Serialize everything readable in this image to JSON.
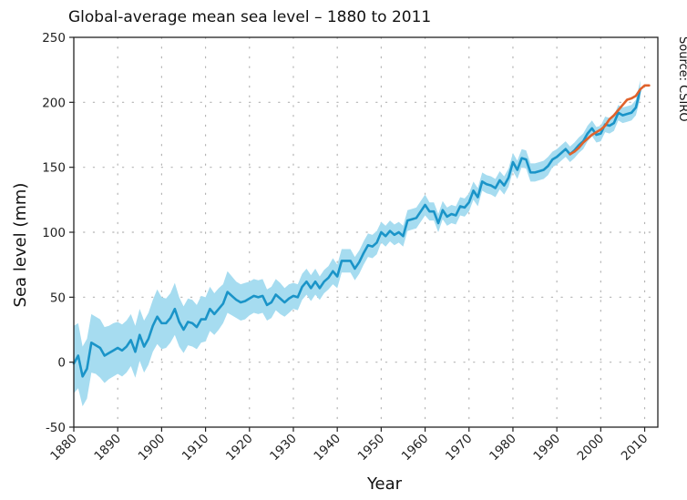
{
  "chart_data": {
    "type": "line",
    "title": "Global-average mean sea level – 1880 to 2011",
    "xlabel": "Year",
    "ylabel": "Sea level (mm)",
    "source": "Source: CSIRO",
    "xlim": [
      1880,
      2013
    ],
    "ylim": [
      -50,
      250
    ],
    "x_ticks": [
      1880,
      1890,
      1900,
      1910,
      1920,
      1930,
      1940,
      1950,
      1960,
      1970,
      1980,
      1990,
      2000,
      2010
    ],
    "y_ticks": [
      -50,
      0,
      50,
      100,
      150,
      200,
      250
    ],
    "grid": true,
    "series": [
      {
        "color": "#1a94c8",
        "band_color": "#a6dcf0",
        "x": [
          1880,
          1881,
          1882,
          1883,
          1884,
          1885,
          1886,
          1887,
          1888,
          1889,
          1890,
          1891,
          1892,
          1893,
          1894,
          1895,
          1896,
          1897,
          1898,
          1899,
          1900,
          1901,
          1902,
          1903,
          1904,
          1905,
          1906,
          1907,
          1908,
          1909,
          1910,
          1911,
          1912,
          1913,
          1914,
          1915,
          1916,
          1917,
          1918,
          1919,
          1920,
          1921,
          1922,
          1923,
          1924,
          1925,
          1926,
          1927,
          1928,
          1929,
          1930,
          1931,
          1932,
          1933,
          1934,
          1935,
          1936,
          1937,
          1938,
          1939,
          1940,
          1941,
          1942,
          1943,
          1944,
          1945,
          1946,
          1947,
          1948,
          1949,
          1950,
          1951,
          1952,
          1953,
          1954,
          1955,
          1956,
          1957,
          1958,
          1959,
          1960,
          1961,
          1962,
          1963,
          1964,
          1965,
          1966,
          1967,
          1968,
          1969,
          1970,
          1971,
          1972,
          1973,
          1974,
          1975,
          1976,
          1977,
          1978,
          1979,
          1980,
          1981,
          1982,
          1983,
          1984,
          1985,
          1986,
          1987,
          1988,
          1989,
          1990,
          1991,
          1992,
          1993,
          1994,
          1995,
          1996,
          1997,
          1998,
          1999,
          2000,
          2001,
          2002,
          2003,
          2004,
          2005,
          2006,
          2007,
          2008,
          2009
        ],
        "y": [
          -1,
          5,
          -11,
          -5,
          15,
          13,
          11,
          5,
          7,
          9,
          11,
          9,
          12,
          17,
          8,
          21,
          12,
          18,
          28,
          35,
          30,
          30,
          34,
          41,
          31,
          25,
          31,
          30,
          27,
          33,
          33,
          41,
          37,
          41,
          45,
          54,
          51,
          48,
          46,
          47,
          49,
          51,
          50,
          51,
          44,
          46,
          52,
          49,
          46,
          49,
          51,
          50,
          58,
          62,
          57,
          62,
          57,
          62,
          65,
          70,
          66,
          78,
          78,
          78,
          72,
          77,
          84,
          90,
          89,
          92,
          100,
          97,
          101,
          98,
          100,
          97,
          109,
          110,
          111,
          116,
          121,
          116,
          116,
          107,
          117,
          112,
          114,
          113,
          120,
          119,
          123,
          132,
          127,
          139,
          137,
          136,
          134,
          140,
          136,
          142,
          154,
          148,
          157,
          156,
          146,
          146,
          147,
          148,
          151,
          156,
          158,
          161,
          164,
          160,
          163,
          167,
          170,
          176,
          180,
          175,
          176,
          183,
          182,
          184,
          192,
          190,
          191,
          192,
          196,
          210
        ],
        "lower": [
          -24,
          -20,
          -34,
          -28,
          -8,
          -9,
          -12,
          -16,
          -13,
          -11,
          -9,
          -11,
          -8,
          -3,
          -12,
          1,
          -8,
          -2,
          8,
          14,
          10,
          11,
          15,
          21,
          12,
          7,
          13,
          12,
          10,
          15,
          16,
          24,
          21,
          25,
          30,
          38,
          36,
          34,
          32,
          33,
          36,
          38,
          37,
          38,
          32,
          34,
          40,
          37,
          35,
          38,
          41,
          40,
          48,
          52,
          47,
          52,
          48,
          53,
          56,
          60,
          57,
          69,
          69,
          69,
          63,
          68,
          75,
          81,
          80,
          83,
          92,
          89,
          93,
          90,
          92,
          89,
          101,
          102,
          103,
          108,
          113,
          109,
          109,
          100,
          110,
          105,
          107,
          106,
          113,
          112,
          116,
          125,
          120,
          132,
          130,
          129,
          127,
          133,
          129,
          135,
          147,
          141,
          150,
          149,
          139,
          139,
          140,
          141,
          144,
          150,
          152,
          155,
          158,
          154,
          157,
          161,
          164,
          170,
          174,
          169,
          170,
          177,
          176,
          178,
          186,
          184,
          185,
          186,
          190,
          203
        ],
        "upper": [
          28,
          30,
          12,
          18,
          37,
          35,
          33,
          27,
          28,
          30,
          31,
          29,
          32,
          37,
          28,
          41,
          32,
          38,
          48,
          56,
          50,
          49,
          53,
          61,
          50,
          43,
          49,
          48,
          44,
          51,
          50,
          58,
          53,
          57,
          60,
          70,
          66,
          62,
          60,
          61,
          62,
          64,
          63,
          64,
          56,
          58,
          64,
          61,
          57,
          60,
          61,
          60,
          68,
          72,
          67,
          72,
          66,
          71,
          74,
          80,
          75,
          87,
          87,
          87,
          81,
          86,
          93,
          99,
          98,
          101,
          108,
          105,
          109,
          106,
          108,
          105,
          117,
          118,
          119,
          124,
          129,
          123,
          123,
          114,
          124,
          119,
          121,
          120,
          127,
          126,
          130,
          139,
          134,
          146,
          144,
          143,
          141,
          147,
          143,
          149,
          161,
          155,
          164,
          163,
          153,
          153,
          154,
          155,
          158,
          162,
          164,
          167,
          170,
          166,
          169,
          173,
          176,
          182,
          186,
          181,
          182,
          189,
          188,
          190,
          198,
          196,
          197,
          198,
          202,
          217
        ]
      },
      {
        "color": "#e0622c",
        "x": [
          1993,
          1994,
          1995,
          1996,
          1997,
          1998,
          1999,
          2000,
          2001,
          2002,
          2003,
          2004,
          2005,
          2006,
          2007,
          2008,
          2009,
          2010,
          2011
        ],
        "y": [
          160,
          162,
          165,
          169,
          172,
          175,
          177,
          179,
          182,
          187,
          190,
          194,
          198,
          202,
          203,
          205,
          210,
          213,
          213
        ]
      }
    ]
  }
}
